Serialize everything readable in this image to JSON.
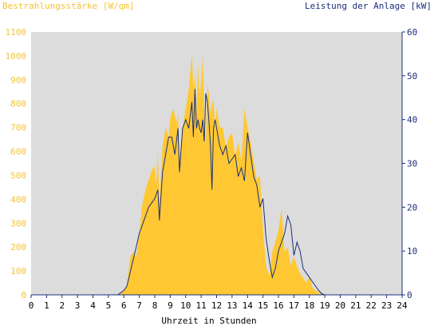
{
  "chart_data": {
    "type": "area",
    "left_axis_label": "Bestrahlungsstärke [W/qm]",
    "right_axis_label": "Leistung der Anlage [kW]",
    "xlabel": "Uhrzeit in Stunden",
    "xlim": [
      0,
      24
    ],
    "ylim_left": [
      0,
      1100
    ],
    "ylim_right": [
      0,
      60
    ],
    "x_ticks": [
      0,
      1,
      2,
      3,
      4,
      5,
      6,
      7,
      8,
      9,
      10,
      11,
      12,
      13,
      14,
      15,
      16,
      17,
      18,
      19,
      20,
      21,
      22,
      23,
      24
    ],
    "y_ticks_left": [
      0,
      100,
      200,
      300,
      400,
      500,
      600,
      700,
      800,
      900,
      1000,
      1100
    ],
    "y_ticks_right": [
      0,
      10,
      20,
      30,
      40,
      50,
      60
    ],
    "series": [
      {
        "name": "Bestrahlungsstärke [W/qm]",
        "axis": "left",
        "style": "area",
        "x": [
          0,
          5.5,
          5.8,
          6.0,
          6.2,
          6.4,
          6.5,
          6.6,
          6.8,
          7.0,
          7.2,
          7.4,
          7.6,
          7.8,
          8.0,
          8.1,
          8.2,
          8.3,
          8.5,
          8.7,
          8.9,
          9.0,
          9.2,
          9.4,
          9.5,
          9.6,
          9.8,
          10.0,
          10.2,
          10.4,
          10.5,
          10.6,
          10.7,
          10.8,
          10.9,
          11.0,
          11.1,
          11.2,
          11.3,
          11.4,
          11.5,
          11.6,
          11.7,
          11.8,
          11.9,
          12.0,
          12.2,
          12.4,
          12.6,
          12.8,
          13.0,
          13.2,
          13.4,
          13.6,
          13.8,
          14.0,
          14.2,
          14.4,
          14.6,
          14.8,
          15.0,
          15.2,
          15.4,
          15.6,
          15.8,
          16.0,
          16.2,
          16.4,
          16.6,
          16.8,
          17.0,
          17.2,
          17.4,
          17.6,
          17.8,
          18.0,
          18.2,
          18.4,
          18.6,
          18.8,
          19.0,
          19.2,
          24
        ],
        "values": [
          0,
          0,
          5,
          15,
          40,
          150,
          170,
          180,
          160,
          260,
          380,
          440,
          480,
          520,
          540,
          460,
          600,
          380,
          620,
          700,
          660,
          740,
          780,
          720,
          760,
          560,
          700,
          780,
          860,
          1010,
          860,
          920,
          760,
          970,
          820,
          900,
          1000,
          780,
          600,
          880,
          840,
          760,
          800,
          820,
          700,
          780,
          700,
          700,
          620,
          660,
          680,
          580,
          640,
          560,
          780,
          700,
          640,
          560,
          480,
          500,
          280,
          120,
          80,
          180,
          220,
          270,
          360,
          180,
          200,
          120,
          160,
          120,
          90,
          70,
          50,
          80,
          30,
          20,
          10,
          5,
          0,
          0,
          0
        ]
      },
      {
        "name": "Leistung der Anlage [kW]",
        "axis": "right",
        "style": "line",
        "x": [
          0,
          5.6,
          5.8,
          6.0,
          6.2,
          6.4,
          6.6,
          6.8,
          7.0,
          7.2,
          7.4,
          7.6,
          7.8,
          8.0,
          8.2,
          8.3,
          8.5,
          8.7,
          8.9,
          9.1,
          9.3,
          9.5,
          9.6,
          9.8,
          10.0,
          10.2,
          10.4,
          10.5,
          10.6,
          10.7,
          10.8,
          10.9,
          11.0,
          11.1,
          11.2,
          11.3,
          11.4,
          11.5,
          11.6,
          11.7,
          11.8,
          11.9,
          12.0,
          12.2,
          12.4,
          12.6,
          12.8,
          13.0,
          13.2,
          13.4,
          13.6,
          13.8,
          14.0,
          14.2,
          14.4,
          14.6,
          14.8,
          15.0,
          15.2,
          15.4,
          15.6,
          15.8,
          16.0,
          16.2,
          16.4,
          16.6,
          16.8,
          17.0,
          17.2,
          17.4,
          17.6,
          17.8,
          18.0,
          18.2,
          18.4,
          18.6,
          18.8,
          19.0,
          19.2,
          24
        ],
        "values": [
          0,
          0,
          0.5,
          1,
          2,
          5,
          8,
          11,
          14,
          16,
          18,
          20,
          21,
          22,
          24,
          17,
          28,
          32,
          36,
          36,
          32,
          38,
          28,
          38,
          40,
          38,
          44,
          36,
          47,
          38,
          40,
          38,
          37,
          40,
          35,
          46,
          44,
          40,
          34,
          24,
          38,
          40,
          38,
          34,
          32,
          34,
          30,
          31,
          32,
          27,
          29,
          26,
          37,
          32,
          27,
          25,
          20,
          22,
          13,
          8,
          4,
          6,
          10,
          12,
          14,
          18,
          16,
          9,
          12,
          10,
          6,
          5,
          4,
          3,
          2,
          1,
          0.3,
          0,
          0,
          0
        ]
      }
    ]
  },
  "colors": {
    "plot_background": "#dcdcdc",
    "irradiance_fill": "#ffc832",
    "power_line": "#1a2f7a",
    "left_axis_text": "#f4c430",
    "right_axis_text": "#1a2f7a"
  }
}
